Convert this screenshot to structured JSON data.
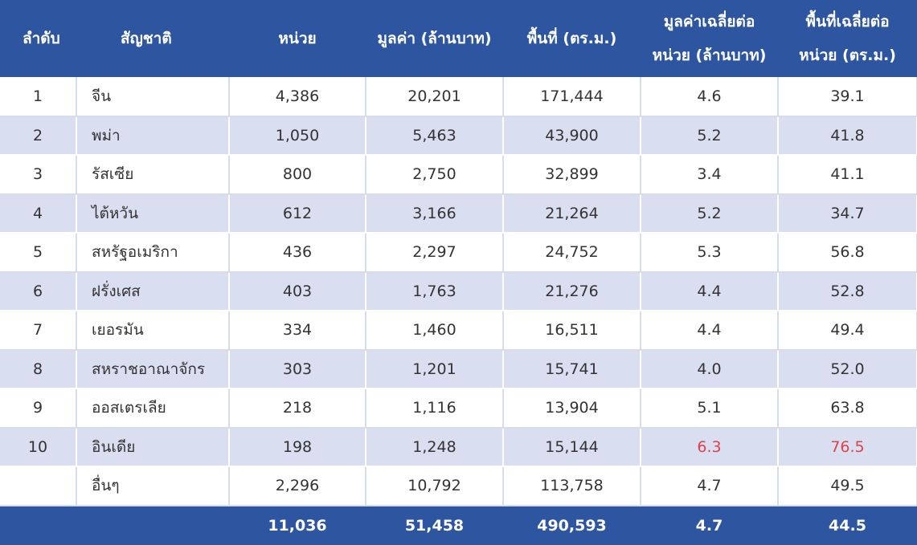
{
  "header": {
    "rank": "ลำดับ",
    "nationality": "สัญชาติ",
    "units": "หน่วย",
    "value": "มูลค่า (ล้านบาท)",
    "area": "พื้นที่ (ตร.ม.)",
    "avg_value_line1": "มูลค่าเฉลี่ยต่อ",
    "avg_value_line2": "หน่วย (ล้านบาท)",
    "avg_area_line1": "พื้นที่เฉลี่ยต่อ",
    "avg_area_line2": "หน่วย (ตร.ม.)"
  },
  "rows": [
    {
      "rank": "1",
      "name": "จีน",
      "units": "4,386",
      "value": "20,201",
      "area": "171,444",
      "avg_value": "4.6",
      "avg_area": "39.1"
    },
    {
      "rank": "2",
      "name": "พม่า",
      "units": "1,050",
      "value": "5,463",
      "area": "43,900",
      "avg_value": "5.2",
      "avg_area": "41.8"
    },
    {
      "rank": "3",
      "name": "รัสเซีย",
      "units": "800",
      "value": "2,750",
      "area": "32,899",
      "avg_value": "3.4",
      "avg_area": "41.1"
    },
    {
      "rank": "4",
      "name": "ไต้หวัน",
      "units": "612",
      "value": "3,166",
      "area": "21,264",
      "avg_value": "5.2",
      "avg_area": "34.7"
    },
    {
      "rank": "5",
      "name": "สหรัฐอเมริกา",
      "units": "436",
      "value": "2,297",
      "area": "24,752",
      "avg_value": "5.3",
      "avg_area": "56.8"
    },
    {
      "rank": "6",
      "name": "ฝรั่งเศส",
      "units": "403",
      "value": "1,763",
      "area": "21,276",
      "avg_value": "4.4",
      "avg_area": "52.8"
    },
    {
      "rank": "7",
      "name": "เยอรมัน",
      "units": "334",
      "value": "1,460",
      "area": "16,511",
      "avg_value": "4.4",
      "avg_area": "49.4"
    },
    {
      "rank": "8",
      "name": "สหราชอาณาจักร",
      "units": "303",
      "value": "1,201",
      "area": "15,741",
      "avg_value": "4.0",
      "avg_area": "52.0"
    },
    {
      "rank": "9",
      "name": "ออสเตรเลีย",
      "units": "218",
      "value": "1,116",
      "area": "13,904",
      "avg_value": "5.1",
      "avg_area": "63.8"
    },
    {
      "rank": "10",
      "name": "อินเดีย",
      "units": "198",
      "value": "1,248",
      "area": "15,144",
      "avg_value": "6.3",
      "avg_area": "76.5"
    },
    {
      "rank": "",
      "name": "อื่นๆ",
      "units": "2,296",
      "value": "10,792",
      "area": "113,758",
      "avg_value": "4.7",
      "avg_area": "49.5"
    }
  ],
  "total": {
    "units": "11,036",
    "value": "51,458",
    "area": "490,593",
    "avg_value": "4.7",
    "avg_area": "44.5"
  },
  "colors": {
    "header_bg": "#2d55a0",
    "stripe": "#d9dff0",
    "highlight": "#e0404a"
  }
}
